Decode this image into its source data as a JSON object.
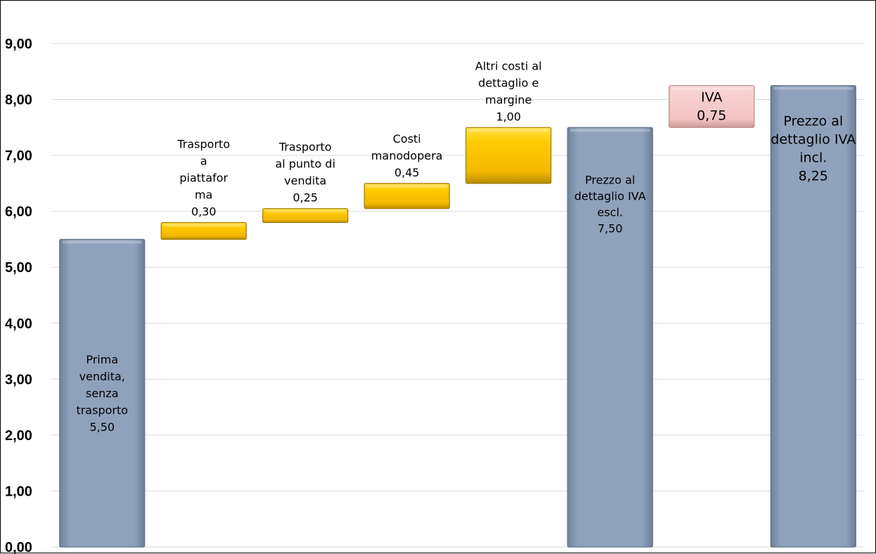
{
  "chart_data": {
    "type": "bar",
    "subtype": "waterfall",
    "ylim": [
      0,
      9
    ],
    "yticks": [
      "0,00",
      "1,00",
      "2,00",
      "3,00",
      "4,00",
      "5,00",
      "6,00",
      "7,00",
      "8,00",
      "9,00"
    ],
    "grid": true,
    "bars": [
      {
        "label_lines": [
          "Prima",
          "vendita,",
          "senza",
          "trasporto"
        ],
        "value_text": "5,50",
        "base": 0,
        "value": 5.5,
        "kind": "total",
        "label_pos": "inside"
      },
      {
        "label_lines": [
          "Trasporto",
          "a",
          "piattafor",
          "ma"
        ],
        "value_text": "0,30",
        "base": 5.5,
        "value": 0.3,
        "kind": "increment",
        "label_pos": "above"
      },
      {
        "label_lines": [
          "Trasporto",
          "al punto di",
          "vendita"
        ],
        "value_text": "0,25",
        "base": 5.8,
        "value": 0.25,
        "kind": "increment",
        "label_pos": "above"
      },
      {
        "label_lines": [
          "Costi",
          "manodopera"
        ],
        "value_text": "0,45",
        "base": 6.05,
        "value": 0.45,
        "kind": "increment",
        "label_pos": "above"
      },
      {
        "label_lines": [
          "Altri costi al",
          "dettaglio e",
          "margine"
        ],
        "value_text": "1,00",
        "base": 6.5,
        "value": 1.0,
        "kind": "increment",
        "label_pos": "above"
      },
      {
        "label_lines": [
          "Prezzo al",
          "dettaglio IVA",
          "escl."
        ],
        "value_text": "7,50",
        "base": 0,
        "value": 7.5,
        "kind": "total",
        "label_pos": "inside-top"
      },
      {
        "label_lines": [
          "IVA"
        ],
        "value_text": "0,75",
        "base": 7.5,
        "value": 0.75,
        "kind": "tax",
        "label_pos": "inside"
      },
      {
        "label_lines": [
          "Prezzo al",
          "dettaglio IVA",
          "incl."
        ],
        "value_text": "8,25",
        "base": 0,
        "value": 8.25,
        "kind": "total",
        "label_pos": "inside-top"
      }
    ],
    "colors": {
      "total": "#8fa2bc",
      "increment": "#ffcc00",
      "tax": "#f2c4c4",
      "grid": "#d9d9d9"
    }
  }
}
